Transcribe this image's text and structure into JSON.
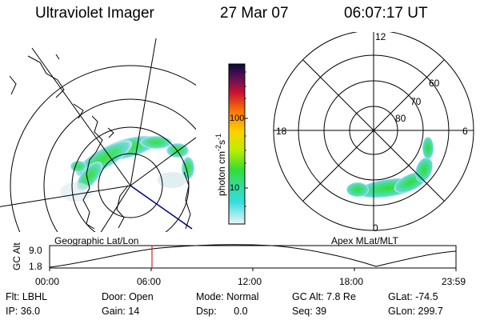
{
  "header": {
    "title": "Ultraviolet Imager",
    "date": "27 Mar 07",
    "time": "06:07:17 UT"
  },
  "geo_panel": {
    "label": "Geographic Lat/Lon"
  },
  "apex_panel": {
    "label": "Apex MLat/MLT",
    "mlt_labels": [
      "12",
      "18",
      "6",
      "0"
    ],
    "lat_labels": [
      "60",
      "70",
      "80"
    ]
  },
  "colorbar": {
    "unit_label": "photon cm",
    "unit_exp1": "-2",
    "unit_mid": "s",
    "unit_exp2": "-1",
    "tick_labels": [
      "100",
      "10"
    ]
  },
  "altitude_plot": {
    "ylabel": "GC Alt",
    "y_ticks": [
      "9.0",
      "1.8"
    ],
    "x_ticks": [
      "00:00",
      "06:00",
      "12:00",
      "18:00",
      "23:59"
    ]
  },
  "info": {
    "row1": [
      {
        "label": "Flt:",
        "value": "LBHL"
      },
      {
        "label": "Door:",
        "value": "Open"
      },
      {
        "label": "Mode:",
        "value": "Normal"
      },
      {
        "label": "GC Alt:",
        "value": "7.8 Re"
      },
      {
        "label": "GLat:",
        "value": "-74.5"
      }
    ],
    "row2": [
      {
        "label": "IP:",
        "value": "36.0"
      },
      {
        "label": "Gain:",
        "value": "14"
      },
      {
        "label": "Dsp:",
        "value": "0.0"
      },
      {
        "label": "Seq:",
        "value": "39"
      },
      {
        "label": "GLon:",
        "value": "299.7"
      }
    ]
  },
  "colors": {
    "marker": "#e02020",
    "geo_line": "#000080"
  }
}
